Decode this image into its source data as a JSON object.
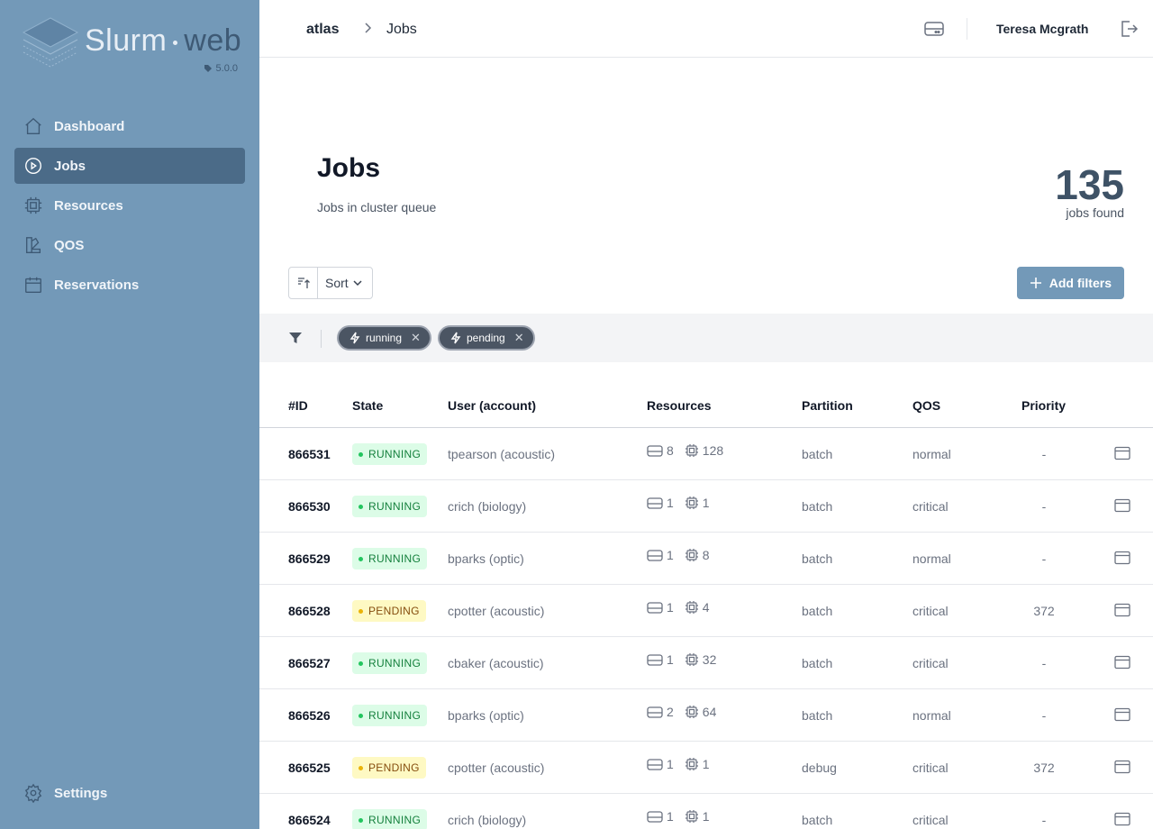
{
  "app": {
    "name_main": "Slurm",
    "name_accent": "web",
    "version": "5.0.0"
  },
  "sidebar": {
    "items": [
      {
        "label": "Dashboard",
        "icon": "home-icon",
        "active": false
      },
      {
        "label": "Jobs",
        "icon": "play-circle-icon",
        "active": true
      },
      {
        "label": "Resources",
        "icon": "cpu-chip-icon",
        "active": false
      },
      {
        "label": "QOS",
        "icon": "swatch-icon",
        "active": false
      },
      {
        "label": "Reservations",
        "icon": "calendar-icon",
        "active": false
      }
    ],
    "settings_label": "Settings"
  },
  "topbar": {
    "cluster": "atlas",
    "page": "Jobs",
    "user": "Teresa Mcgrath"
  },
  "header": {
    "title": "Jobs",
    "subtitle": "Jobs in cluster queue",
    "count": "135",
    "count_label": "jobs found"
  },
  "controls": {
    "sort_label": "Sort",
    "add_filters_label": "Add filters"
  },
  "filters": [
    {
      "label": "running"
    },
    {
      "label": "pending"
    }
  ],
  "table": {
    "headers": {
      "id": "#ID",
      "state": "State",
      "user": "User (account)",
      "resources": "Resources",
      "partition": "Partition",
      "qos": "QOS",
      "priority": "Priority"
    },
    "rows": [
      {
        "id": "866531",
        "state": "RUNNING",
        "user": "tpearson (acoustic)",
        "nodes": "8",
        "cpus": "128",
        "partition": "batch",
        "qos": "normal",
        "priority": "-"
      },
      {
        "id": "866530",
        "state": "RUNNING",
        "user": "crich (biology)",
        "nodes": "1",
        "cpus": "1",
        "partition": "batch",
        "qos": "critical",
        "priority": "-"
      },
      {
        "id": "866529",
        "state": "RUNNING",
        "user": "bparks (optic)",
        "nodes": "1",
        "cpus": "8",
        "partition": "batch",
        "qos": "normal",
        "priority": "-"
      },
      {
        "id": "866528",
        "state": "PENDING",
        "user": "cpotter (acoustic)",
        "nodes": "1",
        "cpus": "4",
        "partition": "batch",
        "qos": "critical",
        "priority": "372"
      },
      {
        "id": "866527",
        "state": "RUNNING",
        "user": "cbaker (acoustic)",
        "nodes": "1",
        "cpus": "32",
        "partition": "batch",
        "qos": "critical",
        "priority": "-"
      },
      {
        "id": "866526",
        "state": "RUNNING",
        "user": "bparks (optic)",
        "nodes": "2",
        "cpus": "64",
        "partition": "batch",
        "qos": "normal",
        "priority": "-"
      },
      {
        "id": "866525",
        "state": "PENDING",
        "user": "cpotter (acoustic)",
        "nodes": "1",
        "cpus": "1",
        "partition": "debug",
        "qos": "critical",
        "priority": "372"
      },
      {
        "id": "866524",
        "state": "RUNNING",
        "user": "crich (biology)",
        "nodes": "1",
        "cpus": "1",
        "partition": "batch",
        "qos": "critical",
        "priority": "-"
      }
    ]
  },
  "colors": {
    "sidebar": "#7399b8",
    "sidebar_active": "#4b6b88",
    "accent_dark": "#3e5a75",
    "running_bg": "#dcfce7",
    "pending_bg": "#fef9c3"
  }
}
